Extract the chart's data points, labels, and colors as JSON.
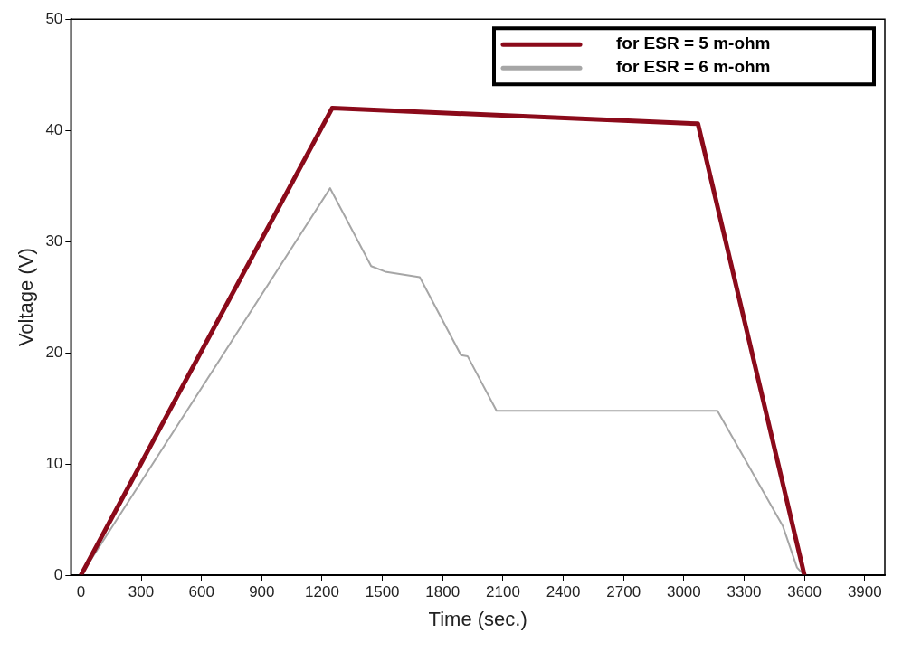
{
  "chart_data": {
    "type": "line",
    "xlabel": "Time (sec.)",
    "ylabel": "Voltage (V)",
    "xlim": [
      -50,
      4000
    ],
    "xticks": [
      0,
      300,
      600,
      900,
      1200,
      1500,
      1800,
      2100,
      2400,
      2700,
      3000,
      3300,
      3600,
      3900
    ],
    "ylim": [
      0,
      50
    ],
    "yticks": [
      0,
      10,
      20,
      30,
      40,
      50
    ],
    "grid": false,
    "legend": "top right",
    "marker": "none",
    "line_style": "solid",
    "series": [
      {
        "name": "for ESR = 5 m-ohm",
        "color": "#8b0a1a",
        "x": [
          0,
          1250,
          3070,
          3600
        ],
        "values": [
          0,
          42,
          40.6,
          0
        ]
      },
      {
        "name": "for ESR = 6 m-ohm",
        "color": "#a6a6a6",
        "x": [
          0,
          1240,
          1444,
          1514,
          1686,
          1891,
          1924,
          2068,
          3167,
          3493,
          3563,
          3600
        ],
        "values": [
          0,
          34.8,
          27.8,
          27.3,
          26.8,
          19.8,
          19.7,
          14.8,
          14.8,
          4.4,
          0.7,
          0
        ]
      }
    ]
  }
}
